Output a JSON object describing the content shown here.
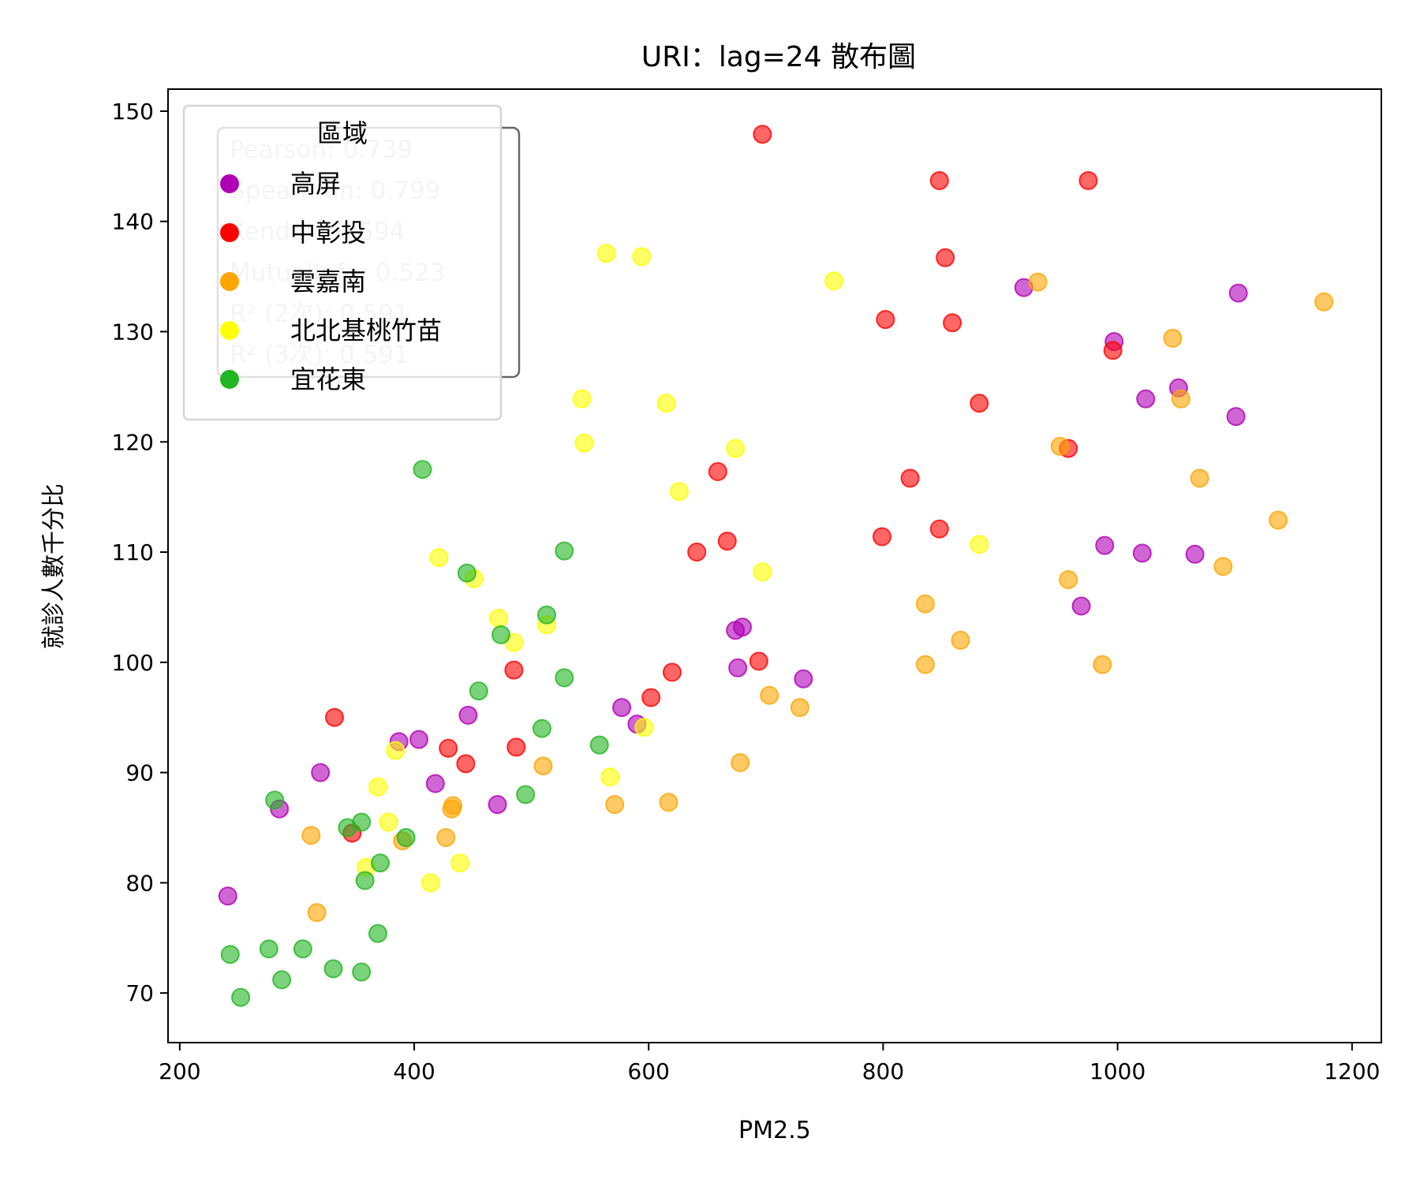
{
  "chart_data": {
    "type": "scatter",
    "title": "URI：lag=24 散布圖",
    "xlabel": "PM2.5",
    "ylabel": "就診人數千分比",
    "xlim": [
      190,
      1225
    ],
    "ylim": [
      65.5,
      152
    ],
    "xticks": [
      200,
      400,
      600,
      800,
      1000,
      1200
    ],
    "yticks": [
      70,
      80,
      90,
      100,
      110,
      120,
      130,
      140,
      150
    ],
    "grid": false,
    "legend": {
      "title": "區域",
      "placement": "top-left"
    },
    "stats_text": [
      "Pearson: 0.739",
      "Spearman: 0.799",
      "Kendall: 0.594",
      "MutualInfo: 0.523",
      "R² (2次): 0.591",
      "R² (3次): 0.591"
    ],
    "series": [
      {
        "name": "高屏",
        "color": "#b000b5",
        "points": [
          [
            241,
            78.8
          ],
          [
            285,
            86.7
          ],
          [
            320,
            90.0
          ],
          [
            387,
            92.8
          ],
          [
            404,
            93.0
          ],
          [
            418,
            89.0
          ],
          [
            446,
            95.2
          ],
          [
            471,
            87.1
          ],
          [
            577,
            95.9
          ],
          [
            590,
            94.4
          ],
          [
            674,
            102.9
          ],
          [
            676,
            99.5
          ],
          [
            680,
            103.2
          ],
          [
            732,
            98.5
          ],
          [
            920,
            134.0
          ],
          [
            969,
            105.1
          ],
          [
            989,
            110.6
          ],
          [
            997,
            129.1
          ],
          [
            1021,
            109.9
          ],
          [
            1024,
            123.9
          ],
          [
            1052,
            124.9
          ],
          [
            1066,
            109.8
          ],
          [
            1101,
            122.3
          ],
          [
            1103,
            133.5
          ]
        ]
      },
      {
        "name": "中彰投",
        "color": "#ff0000",
        "points": [
          [
            332,
            95.0
          ],
          [
            347,
            84.5
          ],
          [
            429,
            92.2
          ],
          [
            444,
            90.8
          ],
          [
            485,
            99.3
          ],
          [
            487,
            92.3
          ],
          [
            602,
            96.8
          ],
          [
            620,
            99.1
          ],
          [
            641,
            110.0
          ],
          [
            659,
            117.3
          ],
          [
            667,
            111.0
          ],
          [
            694,
            100.1
          ],
          [
            697,
            147.9
          ],
          [
            799,
            111.4
          ],
          [
            802,
            131.1
          ],
          [
            823,
            116.7
          ],
          [
            848,
            112.1
          ],
          [
            848,
            143.7
          ],
          [
            853,
            136.7
          ],
          [
            859,
            130.8
          ],
          [
            882,
            123.5
          ],
          [
            958,
            119.4
          ],
          [
            975,
            143.7
          ],
          [
            996,
            128.3
          ]
        ]
      },
      {
        "name": "雲嘉南",
        "color": "#ffa500",
        "points": [
          [
            312,
            84.3
          ],
          [
            317,
            77.3
          ],
          [
            390,
            83.8
          ],
          [
            427,
            84.1
          ],
          [
            432,
            86.7
          ],
          [
            433,
            87.0
          ],
          [
            510,
            90.6
          ],
          [
            571,
            87.1
          ],
          [
            617,
            87.3
          ],
          [
            678,
            90.9
          ],
          [
            703,
            97.0
          ],
          [
            729,
            95.9
          ],
          [
            836,
            105.3
          ],
          [
            836,
            99.8
          ],
          [
            866,
            102.0
          ],
          [
            932,
            134.5
          ],
          [
            951,
            119.6
          ],
          [
            958,
            107.5
          ],
          [
            987,
            99.8
          ],
          [
            1047,
            129.4
          ],
          [
            1054,
            123.9
          ],
          [
            1070,
            116.7
          ],
          [
            1090,
            108.7
          ],
          [
            1137,
            112.9
          ],
          [
            1176,
            132.7
          ]
        ]
      },
      {
        "name": "北北基桃竹苗",
        "color": "#ffff00",
        "points": [
          [
            359,
            81.4
          ],
          [
            369,
            88.7
          ],
          [
            378,
            85.5
          ],
          [
            384,
            92.0
          ],
          [
            414,
            80.0
          ],
          [
            421,
            109.5
          ],
          [
            439,
            81.8
          ],
          [
            451,
            107.6
          ],
          [
            472,
            104.0
          ],
          [
            485,
            101.8
          ],
          [
            513,
            103.4
          ],
          [
            543,
            123.9
          ],
          [
            545,
            119.9
          ],
          [
            564,
            137.1
          ],
          [
            567,
            89.6
          ],
          [
            594,
            136.8
          ],
          [
            596,
            94.1
          ],
          [
            615,
            123.5
          ],
          [
            626,
            115.5
          ],
          [
            674,
            119.4
          ],
          [
            697,
            108.2
          ],
          [
            758,
            134.6
          ],
          [
            882,
            110.7
          ]
        ]
      },
      {
        "name": "宜花東",
        "color": "#22b522",
        "points": [
          [
            243,
            73.5
          ],
          [
            252,
            69.6
          ],
          [
            276,
            74.0
          ],
          [
            281,
            87.5
          ],
          [
            287,
            71.2
          ],
          [
            305,
            74.0
          ],
          [
            331,
            72.2
          ],
          [
            343,
            85.0
          ],
          [
            355,
            85.5
          ],
          [
            355,
            71.9
          ],
          [
            358,
            80.2
          ],
          [
            369,
            75.4
          ],
          [
            371,
            81.8
          ],
          [
            393,
            84.1
          ],
          [
            407,
            117.5
          ],
          [
            445,
            108.1
          ],
          [
            455,
            97.4
          ],
          [
            474,
            102.5
          ],
          [
            495,
            88.0
          ],
          [
            509,
            94.0
          ],
          [
            513,
            104.3
          ],
          [
            528,
            98.6
          ],
          [
            528,
            110.1
          ],
          [
            558,
            92.5
          ]
        ]
      }
    ]
  }
}
